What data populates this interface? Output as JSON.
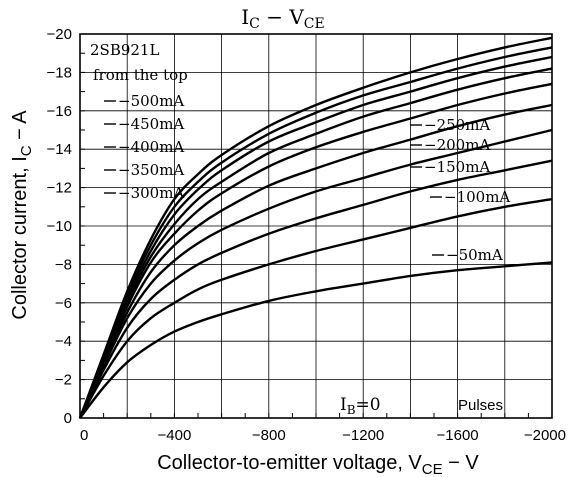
{
  "chart_data": {
    "type": "line",
    "title": "I",
    "title_sub": "C",
    "title_rest": " − V",
    "title_sub2": "CE",
    "xlabel": "Collector-to-emitter voltage, V",
    "xlabel_sub": "CE",
    "xlabel_rest": " − V",
    "ylabel": "Collector current, I",
    "ylabel_sub": "C",
    "ylabel_rest": " − A",
    "xlim": [
      0,
      -2000
    ],
    "ylim": [
      0,
      -20
    ],
    "grid": true,
    "x_ticks": [
      {
        "value": 0,
        "label": "0"
      },
      {
        "value": -400,
        "label": "−400"
      },
      {
        "value": -800,
        "label": "−800"
      },
      {
        "value": -1200,
        "label": "−1200"
      },
      {
        "value": -1600,
        "label": "−1600"
      },
      {
        "value": -2000,
        "label": "−2000"
      }
    ],
    "y_ticks": [
      {
        "value": 0,
        "label": "0"
      },
      {
        "value": -2,
        "label": "−2"
      },
      {
        "value": -4,
        "label": "−4"
      },
      {
        "value": -6,
        "label": "−6"
      },
      {
        "value": -8,
        "label": "−8"
      },
      {
        "value": -10,
        "label": "−10"
      },
      {
        "value": -12,
        "label": "−12"
      },
      {
        "value": -14,
        "label": "−14"
      },
      {
        "value": -16,
        "label": "−16"
      },
      {
        "value": -18,
        "label": "−18"
      },
      {
        "value": -20,
        "label": "−20"
      }
    ],
    "x": [
      0,
      -100,
      -200,
      -300,
      -400,
      -500,
      -600,
      -800,
      -1000,
      -1200,
      -1400,
      -1600,
      -1800,
      -2000
    ],
    "series": [
      {
        "name": "−500mA",
        "values": [
          0,
          -3.3,
          -6.6,
          -9.3,
          -11.4,
          -12.7,
          -13.7,
          -15.2,
          -16.3,
          -17.2,
          -18.0,
          -18.7,
          -19.3,
          -19.8
        ]
      },
      {
        "name": "−450mA",
        "values": [
          0,
          -3.2,
          -6.4,
          -9.0,
          -11.0,
          -12.3,
          -13.3,
          -14.8,
          -15.9,
          -16.8,
          -17.5,
          -18.2,
          -18.8,
          -19.3
        ]
      },
      {
        "name": "−400mA",
        "values": [
          0,
          -3.1,
          -6.2,
          -8.7,
          -10.6,
          -11.9,
          -12.9,
          -14.4,
          -15.4,
          -16.3,
          -17.0,
          -17.7,
          -18.3,
          -18.8
        ]
      },
      {
        "name": "−350mA",
        "values": [
          0,
          -3.0,
          -6.0,
          -8.4,
          -10.1,
          -11.4,
          -12.3,
          -13.8,
          -14.8,
          -15.7,
          -16.4,
          -17.1,
          -17.7,
          -18.2
        ]
      },
      {
        "name": "−300mA",
        "values": [
          0,
          -2.9,
          -5.8,
          -8.1,
          -9.6,
          -10.8,
          -11.7,
          -13.1,
          -14.1,
          -14.9,
          -15.6,
          -16.3,
          -16.9,
          -17.4
        ]
      },
      {
        "name": "−250mA",
        "values": [
          0,
          -2.8,
          -5.5,
          -7.6,
          -9.0,
          -10.0,
          -10.8,
          -12.1,
          -13.0,
          -13.8,
          -14.5,
          -15.2,
          -15.8,
          -16.3
        ]
      },
      {
        "name": "−200mA",
        "values": [
          0,
          -2.7,
          -5.2,
          -7.0,
          -8.2,
          -9.1,
          -9.8,
          -10.9,
          -11.8,
          -12.5,
          -13.2,
          -13.8,
          -14.4,
          -15.0
        ]
      },
      {
        "name": "−150mA",
        "values": [
          0,
          -2.5,
          -4.7,
          -6.2,
          -7.2,
          -8.0,
          -8.6,
          -9.6,
          -10.4,
          -11.1,
          -11.8,
          -12.4,
          -12.9,
          -13.4
        ]
      },
      {
        "name": "−100mA",
        "values": [
          0,
          -2.2,
          -4.0,
          -5.2,
          -6.0,
          -6.7,
          -7.2,
          -8.0,
          -8.7,
          -9.3,
          -9.9,
          -10.5,
          -11.0,
          -11.4
        ]
      },
      {
        "name": "−50mA",
        "values": [
          0,
          -1.6,
          -2.9,
          -3.8,
          -4.5,
          -5.0,
          -5.4,
          -6.1,
          -6.6,
          -7.0,
          -7.4,
          -7.7,
          -7.9,
          -8.1
        ]
      }
    ],
    "annotations": {
      "part": "2SB921L",
      "order": "from the top",
      "ib_zero_main": "I",
      "ib_zero_sub": "B",
      "ib_zero_rest": "=0",
      "pulses": "Pulses"
    },
    "line_color": "#000000"
  }
}
